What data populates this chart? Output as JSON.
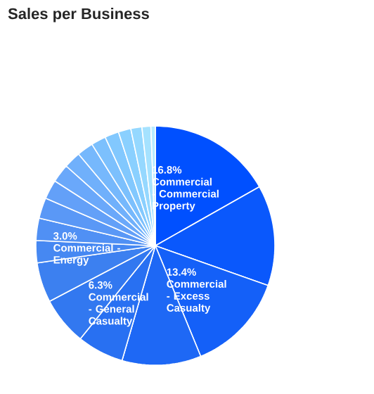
{
  "chart_data": {
    "type": "pie",
    "title": "Sales per Business",
    "categories": [
      "Commercial - Commercial Property",
      null,
      "Commercial - Excess Casualty",
      null,
      "Commercial - General Casualty",
      null,
      null,
      "Commercial - Energy",
      null,
      null,
      null,
      null,
      null,
      null,
      null,
      null,
      null,
      null,
      null,
      null
    ],
    "values": [
      16.8,
      13.6,
      13.4,
      10.7,
      6.3,
      6.5,
      5.4,
      3.0,
      3.0,
      2.8,
      2.6,
      2.5,
      2.3,
      2.2,
      2.0,
      1.9,
      1.7,
      1.5,
      1.2,
      0.6
    ],
    "value_labels": [
      "16.8%",
      null,
      "13.4%",
      null,
      "6.3%",
      null,
      null,
      "3.0%",
      null,
      null,
      null,
      null,
      null,
      null,
      null,
      null,
      null,
      null,
      null,
      null
    ],
    "colors": [
      "#0050ff",
      "#0a58fc",
      "#1460f8",
      "#1e68f5",
      "#2870f2",
      "#3278f0",
      "#3c80f0",
      "#4688f2",
      "#5090f4",
      "#5a98f6",
      "#63a0f8",
      "#6aa8fa",
      "#70b0fb",
      "#76b8fc",
      "#7cc0fd",
      "#82c8fe",
      "#8ad0ff",
      "#95d8ff",
      "#a5e2ff",
      "#b8ecff"
    ]
  }
}
